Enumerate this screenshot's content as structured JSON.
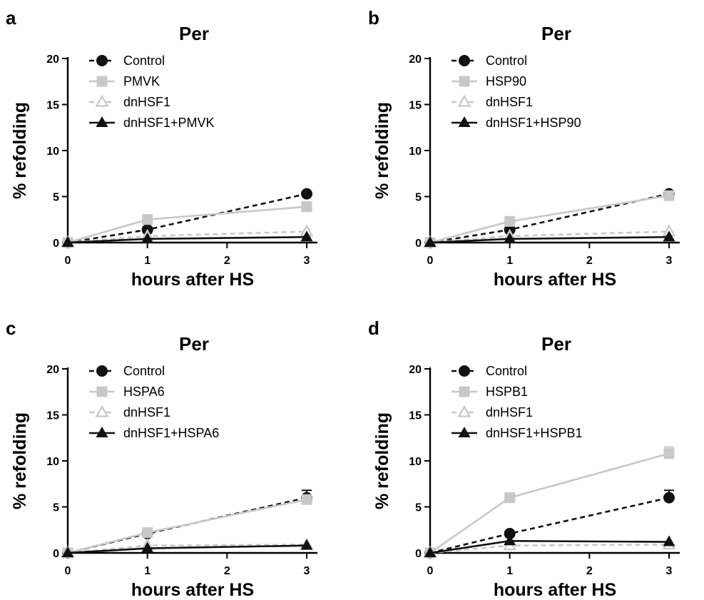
{
  "chart_data": [
    {
      "panel": "a",
      "type": "line",
      "title": "Per",
      "xlabel": "hours after HS",
      "ylabel": "% refolding",
      "xlim": [
        0,
        3
      ],
      "ylim": [
        0,
        20
      ],
      "x_ticks": [
        0,
        1,
        2,
        3
      ],
      "y_ticks": [
        0,
        5,
        10,
        15,
        20
      ],
      "x": [
        0,
        1,
        3
      ],
      "legend_position": "top-left",
      "series": [
        {
          "name": "Control",
          "values": [
            0,
            1.4,
            5.3
          ],
          "errors": [
            0,
            0,
            0
          ],
          "color": "#111111",
          "marker": "circle",
          "dash": "dashed"
        },
        {
          "name": "PMVK",
          "values": [
            0,
            2.5,
            3.9
          ],
          "errors": [
            0,
            0,
            0
          ],
          "color": "#c8c8c8",
          "marker": "square",
          "dash": "solid"
        },
        {
          "name": "dnHSF1",
          "values": [
            0,
            0.7,
            1.2
          ],
          "errors": [
            0,
            0,
            0
          ],
          "color": "#c8c8c8",
          "marker": "triangle-open",
          "dash": "dashed"
        },
        {
          "name": "dnHSF1+PMVK",
          "values": [
            0,
            0.4,
            0.6
          ],
          "errors": [
            0,
            0,
            0
          ],
          "color": "#111111",
          "marker": "triangle",
          "dash": "solid"
        }
      ]
    },
    {
      "panel": "b",
      "type": "line",
      "title": "Per",
      "xlabel": "hours after HS",
      "ylabel": "% refolding",
      "xlim": [
        0,
        3
      ],
      "ylim": [
        0,
        20
      ],
      "x_ticks": [
        0,
        1,
        2,
        3
      ],
      "y_ticks": [
        0,
        5,
        10,
        15,
        20
      ],
      "x": [
        0,
        1,
        3
      ],
      "legend_position": "top-left",
      "series": [
        {
          "name": "Control",
          "values": [
            0,
            1.4,
            5.3
          ],
          "errors": [
            0,
            0,
            0
          ],
          "color": "#111111",
          "marker": "circle",
          "dash": "dashed"
        },
        {
          "name": "HSP90",
          "values": [
            0,
            2.3,
            5.1
          ],
          "errors": [
            0,
            0,
            0
          ],
          "color": "#c8c8c8",
          "marker": "square",
          "dash": "solid"
        },
        {
          "name": "dnHSF1",
          "values": [
            0,
            0.7,
            1.2
          ],
          "errors": [
            0,
            0,
            0
          ],
          "color": "#c8c8c8",
          "marker": "triangle-open",
          "dash": "dashed"
        },
        {
          "name": "dnHSF1+HSP90",
          "values": [
            0,
            0.4,
            0.6
          ],
          "errors": [
            0,
            0,
            0
          ],
          "color": "#111111",
          "marker": "triangle",
          "dash": "solid"
        }
      ]
    },
    {
      "panel": "c",
      "type": "line",
      "title": "Per",
      "xlabel": "hours after HS",
      "ylabel": "% refolding",
      "xlim": [
        0,
        3
      ],
      "ylim": [
        0,
        20
      ],
      "x_ticks": [
        0,
        1,
        2,
        3
      ],
      "y_ticks": [
        0,
        5,
        10,
        15,
        20
      ],
      "x": [
        0,
        1,
        3
      ],
      "legend_position": "top-left",
      "series": [
        {
          "name": "Control",
          "values": [
            0,
            2.1,
            6.0
          ],
          "errors": [
            0,
            0,
            0.8
          ],
          "color": "#111111",
          "marker": "circle",
          "dash": "dashed"
        },
        {
          "name": "HSPA6",
          "values": [
            0,
            2.2,
            5.8
          ],
          "errors": [
            0,
            0,
            0
          ],
          "color": "#c8c8c8",
          "marker": "square",
          "dash": "solid"
        },
        {
          "name": "dnHSF1",
          "values": [
            0,
            0.8,
            0.9
          ],
          "errors": [
            0,
            0,
            0
          ],
          "color": "#c8c8c8",
          "marker": "triangle-open",
          "dash": "dashed"
        },
        {
          "name": "dnHSF1+HSPA6",
          "values": [
            0,
            0.5,
            0.8
          ],
          "errors": [
            0,
            0,
            0
          ],
          "color": "#111111",
          "marker": "triangle",
          "dash": "solid"
        }
      ]
    },
    {
      "panel": "d",
      "type": "line",
      "title": "Per",
      "xlabel": "hours after HS",
      "ylabel": "% refolding",
      "xlim": [
        0,
        3
      ],
      "ylim": [
        0,
        20
      ],
      "x_ticks": [
        0,
        1,
        2,
        3
      ],
      "y_ticks": [
        0,
        5,
        10,
        15,
        20
      ],
      "x": [
        0,
        1,
        3
      ],
      "legend_position": "top-left",
      "series": [
        {
          "name": "Control",
          "values": [
            0,
            2.1,
            6.0
          ],
          "errors": [
            0,
            0,
            0.8
          ],
          "color": "#111111",
          "marker": "circle",
          "dash": "dashed"
        },
        {
          "name": "HSPB1",
          "values": [
            0,
            6.0,
            10.8
          ],
          "errors": [
            0,
            0,
            0.7
          ],
          "color": "#c8c8c8",
          "marker": "square",
          "dash": "solid"
        },
        {
          "name": "dnHSF1",
          "values": [
            0,
            0.8,
            0.9
          ],
          "errors": [
            0,
            0,
            0
          ],
          "color": "#c8c8c8",
          "marker": "triangle-open",
          "dash": "dashed"
        },
        {
          "name": "dnHSF1+HSPB1",
          "values": [
            0,
            1.3,
            1.2
          ],
          "errors": [
            0,
            0,
            0
          ],
          "color": "#111111",
          "marker": "triangle",
          "dash": "solid"
        }
      ]
    }
  ]
}
